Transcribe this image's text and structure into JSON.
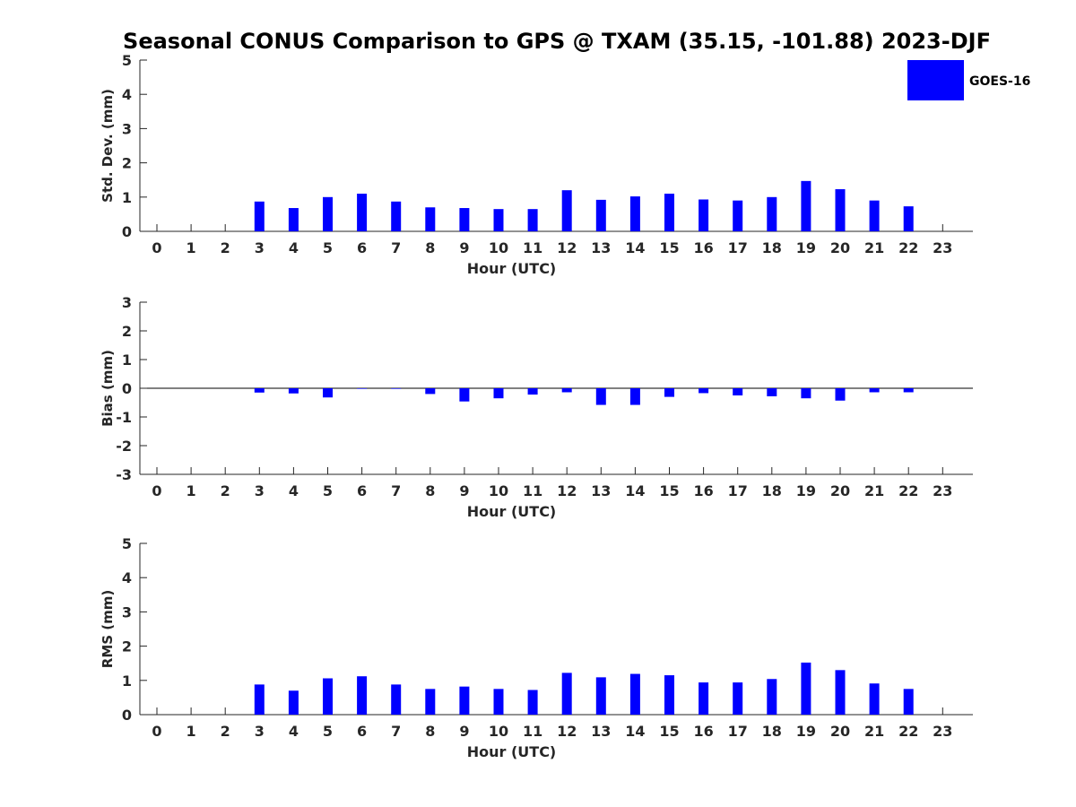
{
  "title": "Seasonal CONUS Comparison to GPS @ TXAM (35.15, -101.88) 2023-DJF",
  "legend": {
    "label": "GOES-16",
    "color": "#0000ff"
  },
  "bar_color": "#0000ff",
  "chart_data": [
    {
      "type": "bar",
      "name": "std-dev",
      "xlabel": "Hour (UTC)",
      "ylabel": "Std. Dev. (mm)",
      "ylim": [
        0,
        5
      ],
      "yticks": [
        0,
        1,
        2,
        3,
        4,
        5
      ],
      "categories": [
        "0",
        "1",
        "2",
        "3",
        "4",
        "5",
        "6",
        "7",
        "8",
        "9",
        "10",
        "11",
        "12",
        "13",
        "14",
        "15",
        "16",
        "17",
        "18",
        "19",
        "20",
        "21",
        "22",
        "23"
      ],
      "series": [
        {
          "name": "GOES-16",
          "values": [
            null,
            null,
            null,
            0.87,
            0.68,
            1.0,
            1.1,
            0.87,
            0.7,
            0.68,
            0.65,
            0.65,
            1.2,
            0.92,
            1.02,
            1.1,
            0.93,
            0.9,
            1.0,
            1.47,
            1.23,
            0.9,
            0.73,
            null
          ]
        }
      ]
    },
    {
      "type": "bar",
      "name": "bias",
      "xlabel": "Hour (UTC)",
      "ylabel": "Bias (mm)",
      "ylim": [
        -3,
        3
      ],
      "yticks": [
        -3,
        -2,
        -1,
        0,
        1,
        2,
        3
      ],
      "categories": [
        "0",
        "1",
        "2",
        "3",
        "4",
        "5",
        "6",
        "7",
        "8",
        "9",
        "10",
        "11",
        "12",
        "13",
        "14",
        "15",
        "16",
        "17",
        "18",
        "19",
        "20",
        "21",
        "22",
        "23"
      ],
      "series": [
        {
          "name": "GOES-16",
          "values": [
            null,
            null,
            null,
            -0.15,
            -0.18,
            -0.32,
            -0.02,
            -0.02,
            -0.2,
            -0.46,
            -0.35,
            -0.22,
            -0.14,
            -0.58,
            -0.58,
            -0.3,
            -0.17,
            -0.25,
            -0.28,
            -0.35,
            -0.43,
            -0.14,
            -0.14,
            null
          ]
        }
      ]
    },
    {
      "type": "bar",
      "name": "rms",
      "xlabel": "Hour (UTC)",
      "ylabel": "RMS (mm)",
      "ylim": [
        0,
        5
      ],
      "yticks": [
        0,
        1,
        2,
        3,
        4,
        5
      ],
      "categories": [
        "0",
        "1",
        "2",
        "3",
        "4",
        "5",
        "6",
        "7",
        "8",
        "9",
        "10",
        "11",
        "12",
        "13",
        "14",
        "15",
        "16",
        "17",
        "18",
        "19",
        "20",
        "21",
        "22",
        "23"
      ],
      "series": [
        {
          "name": "GOES-16",
          "values": [
            null,
            null,
            null,
            0.88,
            0.7,
            1.06,
            1.12,
            0.88,
            0.75,
            0.82,
            0.75,
            0.72,
            1.22,
            1.09,
            1.19,
            1.15,
            0.94,
            0.94,
            1.04,
            1.52,
            1.3,
            0.91,
            0.75,
            null
          ]
        }
      ]
    }
  ]
}
